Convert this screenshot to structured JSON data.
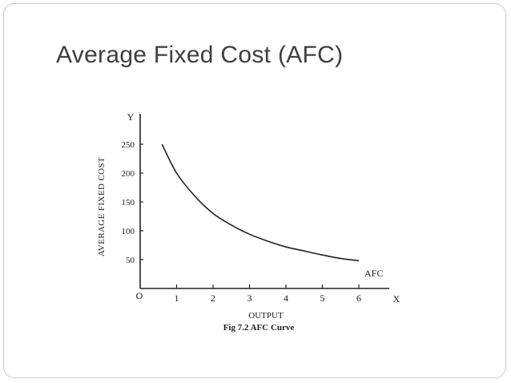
{
  "slide": {
    "title": "Average Fixed Cost (AFC)"
  },
  "chart_data": {
    "type": "line",
    "title": "",
    "caption": "Fig 7.2 AFC Curve",
    "xlabel": "OUTPUT",
    "ylabel": "AVERAGE FIXED COST",
    "x_axis_letter": "X",
    "y_axis_letter": "Y",
    "origin_label": "O",
    "x_ticks": [
      "1",
      "2",
      "3",
      "4",
      "5",
      "6"
    ],
    "y_ticks": [
      "50",
      "100",
      "150",
      "200",
      "250"
    ],
    "xlim": [
      0,
      7
    ],
    "ylim": [
      0,
      270
    ],
    "grid": false,
    "series": [
      {
        "name": "AFC",
        "x": [
          0.6,
          1,
          1.5,
          2,
          2.5,
          3,
          3.5,
          4,
          4.5,
          5,
          5.5,
          6
        ],
        "y": [
          250,
          200,
          160,
          130,
          110,
          94,
          82,
          72,
          65,
          58,
          52,
          48
        ]
      }
    ],
    "colors": {
      "line": "#222222",
      "axis": "#222222",
      "text": "#222222"
    }
  }
}
